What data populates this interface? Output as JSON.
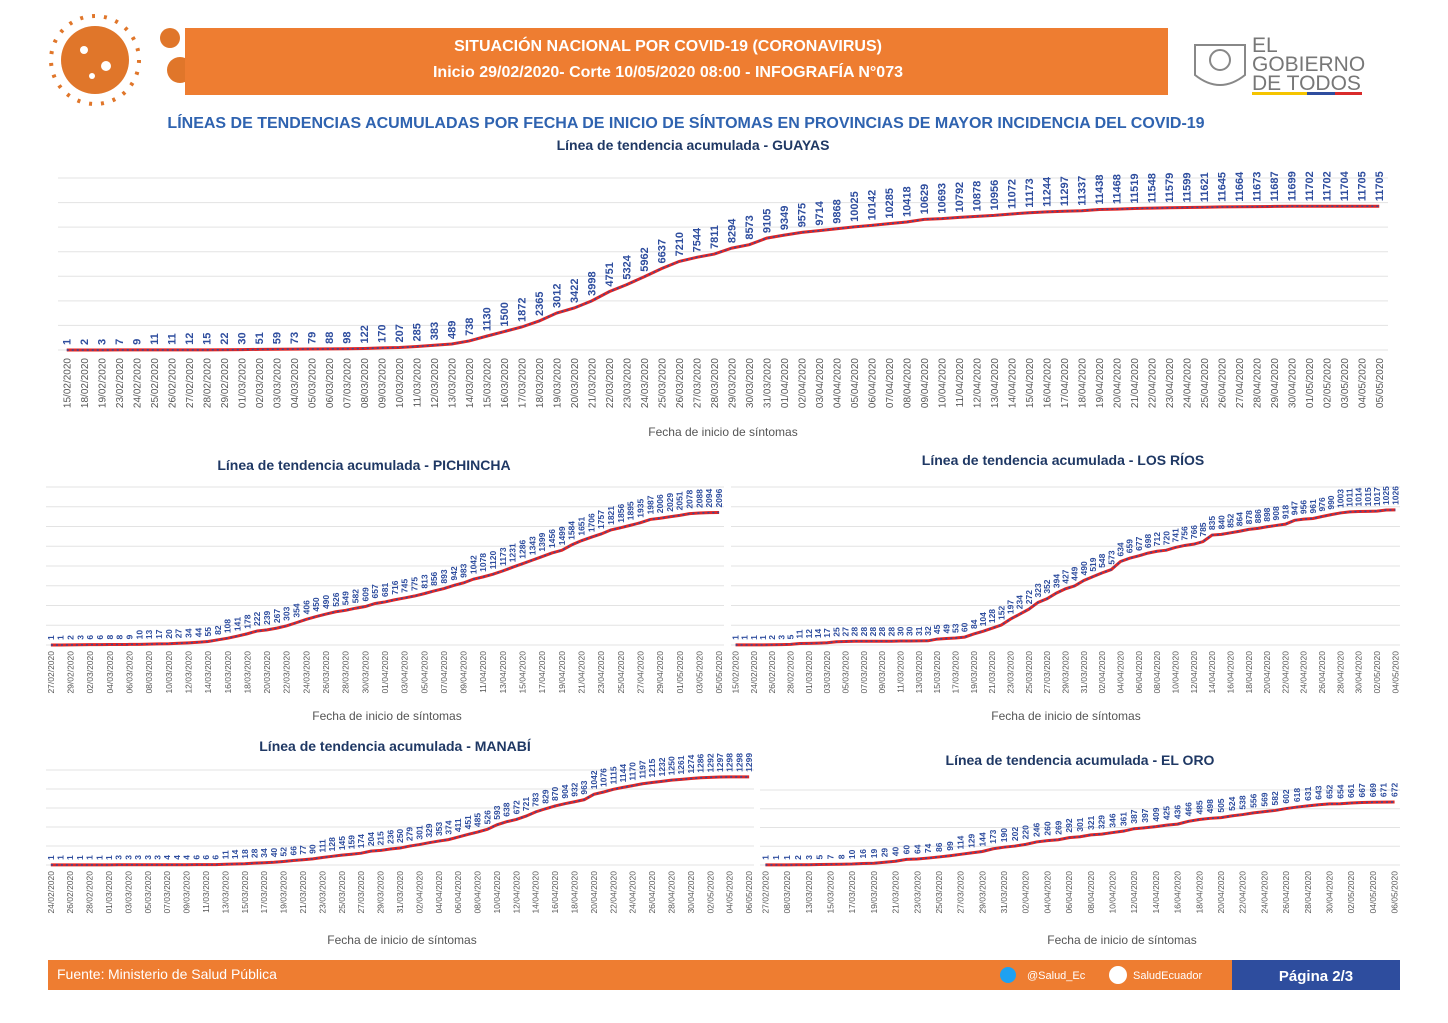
{
  "header": {
    "line1": "SITUACIÓN NACIONAL POR  COVID-19 (CORONAVIRUS)",
    "line2": "Inicio 29/02/2020- Corte 10/05/2020 08:00  - INFOGRAFÍA N°073"
  },
  "logo": [
    "EL",
    "GOBIERNO",
    "DE TODOS"
  ],
  "subtitle": "LÍNEAS DE TENDENCIAS ACUMULADAS POR FECHA DE INICIO DE SÍNTOMAS EN PROVINCIAS DE MAYOR INCIDENCIA DEL COVID-19",
  "chart_data": [
    {
      "type": "line",
      "title": "Línea de tendencia acumulada - GUAYAS",
      "x_label": "Fecha de inicio de síntomas",
      "categories": [
        "15/02/2020",
        "18/02/2020",
        "19/02/2020",
        "23/02/2020",
        "24/02/2020",
        "25/02/2020",
        "26/02/2020",
        "27/02/2020",
        "28/02/2020",
        "29/02/2020",
        "01/03/2020",
        "02/03/2020",
        "03/03/2020",
        "04/03/2020",
        "05/03/2020",
        "06/03/2020",
        "07/03/2020",
        "08/03/2020",
        "09/03/2020",
        "10/03/2020",
        "11/03/2020",
        "12/03/2020",
        "13/03/2020",
        "14/03/2020",
        "15/03/2020",
        "16/03/2020",
        "17/03/2020",
        "18/03/2020",
        "19/03/2020",
        "20/03/2020",
        "21/03/2020",
        "22/03/2020",
        "23/03/2020",
        "24/03/2020",
        "25/03/2020",
        "26/03/2020",
        "27/03/2020",
        "28/03/2020",
        "29/03/2020",
        "30/03/2020",
        "31/03/2020",
        "01/04/2020",
        "02/04/2020",
        "03/04/2020",
        "04/04/2020",
        "05/04/2020",
        "06/04/2020",
        "07/04/2020",
        "08/04/2020",
        "09/04/2020",
        "10/04/2020",
        "11/04/2020",
        "12/04/2020",
        "13/04/2020",
        "14/04/2020",
        "15/04/2020",
        "16/04/2020",
        "17/04/2020",
        "18/04/2020",
        "19/04/2020",
        "20/04/2020",
        "21/04/2020",
        "22/04/2020",
        "23/04/2020",
        "24/04/2020",
        "25/04/2020",
        "26/04/2020",
        "27/04/2020",
        "28/04/2020",
        "29/04/2020",
        "30/04/2020",
        "01/05/2020",
        "02/05/2020",
        "03/05/2020",
        "04/05/2020",
        "05/05/2020"
      ],
      "values": [
        1,
        2,
        3,
        7,
        9,
        11,
        11,
        12,
        15,
        22,
        30,
        51,
        59,
        73,
        79,
        88,
        98,
        122,
        170,
        207,
        285,
        383,
        489,
        738,
        1130,
        1500,
        1872,
        2365,
        3012,
        3422,
        3998,
        4751,
        5324,
        5962,
        6637,
        7210,
        7544,
        7811,
        8294,
        8573,
        9105,
        9349,
        9575,
        9714,
        9868,
        10025,
        10142,
        10285,
        10418,
        10629,
        10693,
        10792,
        10878,
        10956,
        11072,
        11173,
        11244,
        11297,
        11337,
        11438,
        11468,
        11519,
        11548,
        11579,
        11599,
        11621,
        11645,
        11664,
        11673,
        11687,
        11699,
        11702,
        11702,
        11704,
        11705,
        11705
      ],
      "color": "#e02626",
      "dash_color": "#2e4d9e",
      "ylim": [
        0,
        14000
      ],
      "grid": true
    },
    {
      "type": "line",
      "title": "Línea de tendencia acumulada - PICHINCHA",
      "x_label": "Fecha de inicio de síntomas",
      "categories": [
        "27/02/2020",
        null,
        "29/02/2020",
        null,
        "02/03/2020",
        null,
        "04/03/2020",
        null,
        "06/03/2020",
        null,
        "08/03/2020",
        null,
        "10/03/2020",
        null,
        "12/03/2020",
        null,
        "14/03/2020",
        null,
        "16/03/2020",
        null,
        "18/03/2020",
        null,
        "20/03/2020",
        null,
        "22/03/2020",
        null,
        "24/03/2020",
        null,
        "26/03/2020",
        null,
        "28/03/2020",
        null,
        "30/03/2020",
        null,
        "01/04/2020",
        null,
        "03/04/2020",
        null,
        "05/04/2020",
        null,
        "07/04/2020",
        null,
        "09/04/2020",
        null,
        "11/04/2020",
        null,
        "13/04/2020",
        null,
        "15/04/2020",
        null,
        "17/04/2020",
        null,
        "19/04/2020",
        null,
        "21/04/2020",
        null,
        "23/04/2020",
        null,
        "25/04/2020",
        null,
        "27/04/2020",
        null,
        "29/04/2020",
        null,
        "01/05/2020",
        null,
        "03/05/2020",
        null,
        "05/05/2020"
      ],
      "values": [
        1,
        1,
        2,
        3,
        6,
        6,
        8,
        8,
        9,
        10,
        13,
        17,
        20,
        27,
        34,
        44,
        55,
        82,
        108,
        141,
        178,
        222,
        239,
        267,
        303,
        354,
        406,
        450,
        490,
        526,
        549,
        582,
        609,
        657,
        681,
        716,
        745,
        775,
        813,
        856,
        893,
        942,
        983,
        1042,
        1078,
        1120,
        1173,
        1231,
        1286,
        1343,
        1399,
        1456,
        1499,
        1584,
        1651,
        1706,
        1757,
        1821,
        1856,
        1895,
        1935,
        1987,
        2006,
        2029,
        2051,
        2078,
        2088,
        2094,
        2096
      ],
      "color": "#e02626",
      "dash_color": "#2e4d9e",
      "ylim": [
        0,
        2500
      ],
      "grid": true
    },
    {
      "type": "line",
      "title": "Línea de tendencia acumulada - LOS RÍOS",
      "x_label": "Fecha de inicio de síntomas",
      "categories": [
        "15/02/2020",
        null,
        "24/02/2020",
        null,
        "26/02/2020",
        null,
        "28/02/2020",
        null,
        "01/03/2020",
        null,
        "03/03/2020",
        null,
        "05/03/2020",
        null,
        "07/03/2020",
        null,
        "09/03/2020",
        null,
        "11/03/2020",
        null,
        "13/03/2020",
        null,
        "15/03/2020",
        null,
        "17/03/2020",
        null,
        "19/03/2020",
        null,
        "21/03/2020",
        null,
        "23/03/2020",
        null,
        "25/03/2020",
        null,
        "27/03/2020",
        null,
        "29/03/2020",
        null,
        "31/03/2020",
        null,
        "02/04/2020",
        null,
        "04/04/2020",
        null,
        "06/04/2020",
        null,
        "08/04/2020",
        null,
        "10/04/2020",
        null,
        "12/04/2020",
        null,
        "14/04/2020",
        null,
        "16/04/2020",
        null,
        "18/04/2020",
        null,
        "20/04/2020",
        null,
        "22/04/2020",
        null,
        "24/04/2020",
        null,
        "26/04/2020",
        null,
        "28/04/2020",
        null,
        "30/04/2020",
        null,
        "02/05/2020",
        null,
        "04/05/2020"
      ],
      "values": [
        1,
        1,
        1,
        1,
        2,
        3,
        5,
        11,
        12,
        14,
        17,
        25,
        27,
        28,
        28,
        28,
        28,
        28,
        30,
        30,
        31,
        32,
        45,
        49,
        53,
        60,
        84,
        104,
        128,
        152,
        197,
        234,
        272,
        323,
        352,
        394,
        427,
        449,
        490,
        519,
        548,
        573,
        634,
        659,
        677,
        698,
        712,
        720,
        741,
        756,
        766,
        785,
        835,
        840,
        852,
        864,
        878,
        886,
        898,
        908,
        918,
        947,
        956,
        961,
        976,
        990,
        1003,
        1011,
        1014,
        1015,
        1017,
        1025,
        1026
      ],
      "color": "#e02626",
      "dash_color": "#2e4d9e",
      "ylim": [
        0,
        1200
      ],
      "grid": true
    },
    {
      "type": "line",
      "title": "Línea de tendencia acumulada - MANABÍ",
      "x_label": "Fecha de inicio de síntomas",
      "categories": [
        "24/02/2020",
        null,
        "26/02/2020",
        null,
        "28/02/2020",
        null,
        "01/03/2020",
        null,
        "03/03/2020",
        null,
        "05/03/2020",
        null,
        "07/03/2020",
        null,
        "09/03/2020",
        null,
        "11/03/2020",
        null,
        "13/03/2020",
        null,
        "15/03/2020",
        null,
        "17/03/2020",
        null,
        "19/03/2020",
        null,
        "21/03/2020",
        null,
        "23/03/2020",
        null,
        "25/03/2020",
        null,
        "27/03/2020",
        null,
        "29/03/2020",
        null,
        "31/03/2020",
        null,
        "02/04/2020",
        null,
        "04/04/2020",
        null,
        "06/04/2020",
        null,
        "08/04/2020",
        null,
        "10/04/2020",
        null,
        "12/04/2020",
        null,
        "14/04/2020",
        null,
        "16/04/2020",
        null,
        "18/04/2020",
        null,
        "20/04/2020",
        null,
        "22/04/2020",
        null,
        "24/04/2020",
        null,
        "26/04/2020",
        null,
        "28/04/2020",
        null,
        "30/04/2020",
        null,
        "02/05/2020",
        null,
        "04/05/2020",
        null,
        "06/05/2020"
      ],
      "values": [
        1,
        1,
        1,
        1,
        1,
        1,
        1,
        3,
        3,
        3,
        3,
        3,
        4,
        4,
        4,
        6,
        6,
        6,
        11,
        14,
        18,
        28,
        34,
        40,
        52,
        66,
        77,
        90,
        111,
        128,
        145,
        159,
        174,
        204,
        215,
        236,
        250,
        279,
        301,
        329,
        353,
        374,
        411,
        451,
        485,
        526,
        593,
        638,
        672,
        721,
        783,
        829,
        870,
        904,
        932,
        963,
        1042,
        1076,
        1115,
        1144,
        1170,
        1197,
        1215,
        1232,
        1250,
        1261,
        1274,
        1286,
        1292,
        1297,
        1298,
        1298,
        1299
      ],
      "color": "#e02626",
      "dash_color": "#2e4d9e",
      "ylim": [
        0,
        1400
      ],
      "grid": true
    },
    {
      "type": "line",
      "title": "Línea de tendencia acumulada - EL ORO",
      "x_label": "Fecha de inicio de síntomas",
      "categories": [
        "27/02/2020",
        null,
        "08/03/2020",
        null,
        "13/03/2020",
        null,
        "15/03/2020",
        null,
        "17/03/2020",
        null,
        "19/03/2020",
        null,
        "21/03/2020",
        null,
        "23/03/2020",
        null,
        "25/03/2020",
        null,
        "27/03/2020",
        null,
        "29/03/2020",
        null,
        "31/03/2020",
        null,
        "02/04/2020",
        null,
        "04/04/2020",
        null,
        "06/04/2020",
        null,
        "08/04/2020",
        null,
        "10/04/2020",
        null,
        "12/04/2020",
        null,
        "14/04/2020",
        null,
        "16/04/2020",
        null,
        "18/04/2020",
        null,
        "20/04/2020",
        null,
        "22/04/2020",
        null,
        "24/04/2020",
        null,
        "26/04/2020",
        null,
        "28/04/2020",
        null,
        "30/04/2020",
        null,
        "02/05/2020",
        null,
        "04/05/2020",
        null,
        "06/05/2020"
      ],
      "values": [
        1,
        1,
        1,
        2,
        3,
        5,
        7,
        8,
        10,
        16,
        19,
        29,
        40,
        60,
        64,
        74,
        86,
        99,
        114,
        129,
        144,
        173,
        190,
        202,
        220,
        246,
        260,
        269,
        292,
        301,
        321,
        329,
        346,
        361,
        387,
        397,
        409,
        425,
        436,
        466,
        485,
        498,
        505,
        524,
        538,
        556,
        569,
        582,
        602,
        618,
        631,
        643,
        652,
        654,
        661,
        667,
        669,
        671,
        672
      ],
      "color": "#e02626",
      "dash_color": "#2e4d9e",
      "ylim": [
        0,
        800
      ],
      "grid": true
    }
  ],
  "footer": {
    "source_label": "Fuente:",
    "source": "Ministerio de Salud Pública",
    "twitter": "@Salud_Ec",
    "facebook": "SaludEcuador",
    "page": "Página 2/3"
  }
}
